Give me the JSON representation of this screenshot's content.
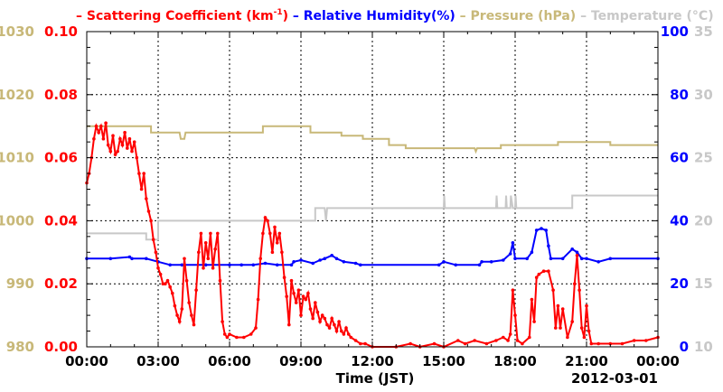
{
  "chart_data": {
    "type": "line",
    "legend": {
      "position": "top",
      "items": [
        {
          "prefix": "– ",
          "text": "Scattering Coefficient (km",
          "sup": "-1",
          "suffix": ")",
          "color": "#ff0000"
        },
        {
          "prefix": "– ",
          "text": "Relative Humidity(%)",
          "sup": "",
          "suffix": "",
          "color": "#0000ff"
        },
        {
          "prefix": "– ",
          "text": "Pressure (hPa)",
          "sup": "",
          "suffix": "",
          "color": "#c8b878"
        },
        {
          "prefix": "– ",
          "text": "Temperature (°C)",
          "sup": "",
          "suffix": "",
          "color": "#c8c8c8"
        }
      ]
    },
    "xlabel": "Time (JST)",
    "date_label": "2012-03-01",
    "x_range": [
      0,
      24
    ],
    "x_ticks": [
      {
        "v": 0,
        "label": "00:00"
      },
      {
        "v": 3,
        "label": "03:00"
      },
      {
        "v": 6,
        "label": "06:00"
      },
      {
        "v": 9,
        "label": "09:00"
      },
      {
        "v": 12,
        "label": "12:00"
      },
      {
        "v": 15,
        "label": "15:00"
      },
      {
        "v": 18,
        "label": "18:00"
      },
      {
        "v": 21,
        "label": "21:00"
      },
      {
        "v": 24,
        "label": "00:00"
      }
    ],
    "grid": true,
    "axes": {
      "pressure": {
        "side": "left-outer",
        "color": "#c8b878",
        "range": [
          980,
          1030
        ],
        "ticks": [
          "980",
          "990",
          "1000",
          "1010",
          "1020",
          "1030"
        ]
      },
      "scattering": {
        "side": "left-inner",
        "color": "#ff0000",
        "range": [
          0,
          0.1
        ],
        "ticks": [
          "0.00",
          "0.02",
          "0.04",
          "0.06",
          "0.08",
          "0.10"
        ]
      },
      "humidity": {
        "side": "right-inner",
        "color": "#0000ff",
        "range": [
          0,
          100
        ],
        "ticks": [
          "0",
          "20",
          "40",
          "60",
          "80",
          "100"
        ]
      },
      "temperature": {
        "side": "right-outer",
        "color": "#c8c8c8",
        "range": [
          10,
          35
        ],
        "ticks": [
          "10",
          "15",
          "20",
          "25",
          "30",
          "35"
        ]
      }
    },
    "series": [
      {
        "name": "Scattering Coefficient (km-1)",
        "axis": "scattering",
        "color": "#ff0000",
        "markers": true,
        "points": [
          [
            0,
            0.052
          ],
          [
            0.1,
            0.055
          ],
          [
            0.2,
            0.06
          ],
          [
            0.3,
            0.066
          ],
          [
            0.4,
            0.07
          ],
          [
            0.5,
            0.068
          ],
          [
            0.6,
            0.07
          ],
          [
            0.7,
            0.066
          ],
          [
            0.8,
            0.071
          ],
          [
            0.9,
            0.064
          ],
          [
            1,
            0.062
          ],
          [
            1.1,
            0.067
          ],
          [
            1.2,
            0.061
          ],
          [
            1.3,
            0.062
          ],
          [
            1.4,
            0.066
          ],
          [
            1.5,
            0.064
          ],
          [
            1.6,
            0.068
          ],
          [
            1.7,
            0.063
          ],
          [
            1.8,
            0.066
          ],
          [
            1.9,
            0.062
          ],
          [
            2,
            0.065
          ],
          [
            2.1,
            0.06
          ],
          [
            2.2,
            0.055
          ],
          [
            2.3,
            0.05
          ],
          [
            2.4,
            0.055
          ],
          [
            2.5,
            0.047
          ],
          [
            2.6,
            0.043
          ],
          [
            2.7,
            0.04
          ],
          [
            2.8,
            0.034
          ],
          [
            2.9,
            0.03
          ],
          [
            3,
            0.025
          ],
          [
            3.1,
            0.023
          ],
          [
            3.2,
            0.02
          ],
          [
            3.3,
            0.02
          ],
          [
            3.4,
            0.021
          ],
          [
            3.5,
            0.019
          ],
          [
            3.6,
            0.017
          ],
          [
            3.7,
            0.013
          ],
          [
            3.8,
            0.01
          ],
          [
            3.9,
            0.008
          ],
          [
            4,
            0.012
          ],
          [
            4.1,
            0.028
          ],
          [
            4.2,
            0.021
          ],
          [
            4.3,
            0.014
          ],
          [
            4.4,
            0.01
          ],
          [
            4.5,
            0.007
          ],
          [
            4.6,
            0.018
          ],
          [
            4.7,
            0.03
          ],
          [
            4.8,
            0.036
          ],
          [
            4.9,
            0.025
          ],
          [
            5,
            0.033
          ],
          [
            5.1,
            0.028
          ],
          [
            5.2,
            0.036
          ],
          [
            5.3,
            0.025
          ],
          [
            5.4,
            0.031
          ],
          [
            5.5,
            0.036
          ],
          [
            5.6,
            0.021
          ],
          [
            5.7,
            0.008
          ],
          [
            5.8,
            0.004
          ],
          [
            5.9,
            0.003
          ],
          [
            6,
            0.004
          ],
          [
            6.3,
            0.003
          ],
          [
            6.6,
            0.003
          ],
          [
            6.9,
            0.004
          ],
          [
            7.1,
            0.006
          ],
          [
            7.2,
            0.015
          ],
          [
            7.3,
            0.028
          ],
          [
            7.4,
            0.036
          ],
          [
            7.5,
            0.041
          ],
          [
            7.6,
            0.04
          ],
          [
            7.7,
            0.036
          ],
          [
            7.8,
            0.03
          ],
          [
            7.9,
            0.038
          ],
          [
            8,
            0.033
          ],
          [
            8.1,
            0.036
          ],
          [
            8.2,
            0.03
          ],
          [
            8.3,
            0.022
          ],
          [
            8.4,
            0.016
          ],
          [
            8.5,
            0.007
          ],
          [
            8.6,
            0.021
          ],
          [
            8.7,
            0.017
          ],
          [
            8.8,
            0.014
          ],
          [
            8.9,
            0.018
          ],
          [
            9,
            0.01
          ],
          [
            9.1,
            0.016
          ],
          [
            9.2,
            0.015
          ],
          [
            9.3,
            0.017
          ],
          [
            9.4,
            0.012
          ],
          [
            9.5,
            0.009
          ],
          [
            9.6,
            0.014
          ],
          [
            9.7,
            0.011
          ],
          [
            9.8,
            0.008
          ],
          [
            9.9,
            0.01
          ],
          [
            10,
            0.009
          ],
          [
            10.1,
            0.007
          ],
          [
            10.2,
            0.006
          ],
          [
            10.3,
            0.009
          ],
          [
            10.4,
            0.007
          ],
          [
            10.5,
            0.005
          ],
          [
            10.6,
            0.008
          ],
          [
            10.7,
            0.005
          ],
          [
            10.8,
            0.004
          ],
          [
            10.9,
            0.006
          ],
          [
            11,
            0.004
          ],
          [
            11.1,
            0.003
          ],
          [
            11.3,
            0.002
          ],
          [
            11.5,
            0.001
          ],
          [
            11.7,
            0.001
          ],
          [
            12,
            0
          ],
          [
            13,
            0
          ],
          [
            13.6,
            0.001
          ],
          [
            14,
            0
          ],
          [
            14.6,
            0.001
          ],
          [
            15,
            0
          ],
          [
            15.6,
            0.002
          ],
          [
            15.9,
            0.001
          ],
          [
            16.3,
            0.002
          ],
          [
            16.8,
            0.001
          ],
          [
            17.2,
            0.002
          ],
          [
            17.5,
            0.003
          ],
          [
            17.7,
            0.002
          ],
          [
            17.8,
            0.004
          ],
          [
            17.9,
            0.018
          ],
          [
            18,
            0.01
          ],
          [
            18.1,
            0.002
          ],
          [
            18.3,
            0.001
          ],
          [
            18.6,
            0.003
          ],
          [
            18.7,
            0.015
          ],
          [
            18.8,
            0.008
          ],
          [
            18.9,
            0.022
          ],
          [
            19,
            0.023
          ],
          [
            19.2,
            0.024
          ],
          [
            19.4,
            0.024
          ],
          [
            19.6,
            0.018
          ],
          [
            19.7,
            0.006
          ],
          [
            19.8,
            0.013
          ],
          [
            19.9,
            0.006
          ],
          [
            20,
            0.012
          ],
          [
            20.2,
            0.003
          ],
          [
            20.4,
            0.008
          ],
          [
            20.5,
            0.02
          ],
          [
            20.6,
            0.029
          ],
          [
            20.7,
            0.018
          ],
          [
            20.8,
            0.006
          ],
          [
            20.9,
            0.003
          ],
          [
            21,
            0.013
          ],
          [
            21.1,
            0.005
          ],
          [
            21.2,
            0.001
          ],
          [
            21.5,
            0.001
          ],
          [
            22,
            0.001
          ],
          [
            22.5,
            0.001
          ],
          [
            23,
            0.002
          ],
          [
            23.5,
            0.002
          ],
          [
            24,
            0.003
          ]
        ]
      },
      {
        "name": "Relative Humidity(%)",
        "axis": "humidity",
        "color": "#0000ff",
        "markers": true,
        "points": [
          [
            0,
            28
          ],
          [
            1,
            28
          ],
          [
            1.8,
            28.5
          ],
          [
            1.9,
            28
          ],
          [
            2.5,
            28
          ],
          [
            3,
            27
          ],
          [
            3.5,
            26
          ],
          [
            4,
            26
          ],
          [
            5,
            26
          ],
          [
            6,
            26
          ],
          [
            6.5,
            26
          ],
          [
            7,
            26
          ],
          [
            7.5,
            26.5
          ],
          [
            8,
            26
          ],
          [
            8.6,
            26
          ],
          [
            8.7,
            27
          ],
          [
            9,
            27.5
          ],
          [
            9.5,
            26.5
          ],
          [
            9.8,
            27.5
          ],
          [
            10,
            28
          ],
          [
            10.3,
            29
          ],
          [
            10.5,
            28
          ],
          [
            10.8,
            27
          ],
          [
            11.3,
            26.5
          ],
          [
            11.5,
            26
          ],
          [
            14.8,
            26
          ],
          [
            15,
            27
          ],
          [
            15.5,
            26
          ],
          [
            16.5,
            26
          ],
          [
            16.6,
            27
          ],
          [
            17,
            27
          ],
          [
            17.5,
            27.5
          ],
          [
            17.8,
            29.5
          ],
          [
            17.9,
            33
          ],
          [
            18,
            28
          ],
          [
            18.5,
            28
          ],
          [
            18.7,
            30
          ],
          [
            18.9,
            37
          ],
          [
            19.1,
            37.5
          ],
          [
            19.3,
            37
          ],
          [
            19.4,
            32
          ],
          [
            19.5,
            28
          ],
          [
            20,
            28
          ],
          [
            20.4,
            31
          ],
          [
            20.6,
            30
          ],
          [
            20.8,
            28
          ],
          [
            21,
            28
          ],
          [
            21.5,
            27
          ],
          [
            22,
            28
          ],
          [
            24,
            28
          ]
        ]
      },
      {
        "name": "Pressure (hPa)",
        "axis": "pressure",
        "color": "#c8b878",
        "markers": false,
        "points": [
          [
            0,
            1015
          ],
          [
            2.7,
            1015
          ],
          [
            2.7,
            1014
          ],
          [
            3.9,
            1014
          ],
          [
            3.95,
            1013
          ],
          [
            4.1,
            1013
          ],
          [
            4.15,
            1014
          ],
          [
            7.4,
            1014
          ],
          [
            7.4,
            1015
          ],
          [
            9.4,
            1015
          ],
          [
            9.4,
            1014
          ],
          [
            10.7,
            1014
          ],
          [
            10.7,
            1013.5
          ],
          [
            11.6,
            1013.5
          ],
          [
            11.6,
            1013
          ],
          [
            12.7,
            1013
          ],
          [
            12.7,
            1012
          ],
          [
            13.4,
            1012
          ],
          [
            13.4,
            1011.5
          ],
          [
            16.3,
            1011.5
          ],
          [
            16.35,
            1011
          ],
          [
            16.4,
            1011.5
          ],
          [
            17.4,
            1011.5
          ],
          [
            17.4,
            1012
          ],
          [
            19.8,
            1012
          ],
          [
            19.8,
            1012.5
          ],
          [
            22,
            1012.5
          ],
          [
            22,
            1012
          ],
          [
            24,
            1012
          ]
        ]
      },
      {
        "name": "Temperature (°C)",
        "axis": "temperature",
        "color": "#c8c8c8",
        "markers": false,
        "points": [
          [
            0,
            19
          ],
          [
            2.5,
            19
          ],
          [
            2.5,
            18.5
          ],
          [
            3,
            18.5
          ],
          [
            3,
            20
          ],
          [
            9.6,
            20
          ],
          [
            9.6,
            21
          ],
          [
            10,
            21
          ],
          [
            10.05,
            20
          ],
          [
            10.1,
            21
          ],
          [
            15,
            21
          ],
          [
            15.02,
            22
          ],
          [
            15.05,
            21
          ],
          [
            17.2,
            21
          ],
          [
            17.22,
            22
          ],
          [
            17.25,
            21
          ],
          [
            17.6,
            21
          ],
          [
            17.62,
            22
          ],
          [
            17.65,
            21
          ],
          [
            17.8,
            21
          ],
          [
            17.82,
            22
          ],
          [
            17.9,
            21
          ],
          [
            18,
            21
          ],
          [
            18.02,
            22
          ],
          [
            18.05,
            21
          ],
          [
            20.4,
            21
          ],
          [
            20.4,
            22
          ],
          [
            24,
            22
          ]
        ]
      }
    ]
  }
}
